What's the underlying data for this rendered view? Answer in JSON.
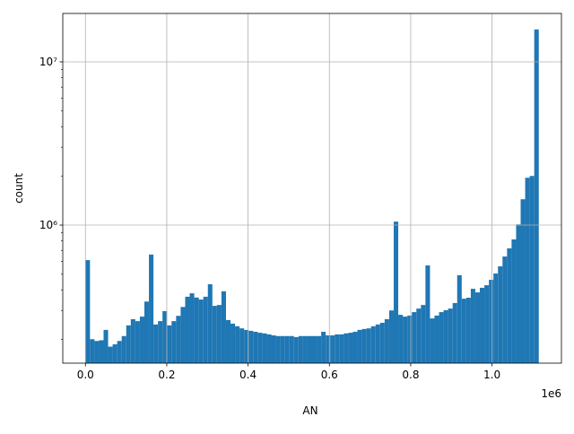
{
  "chart_data": {
    "type": "histogram",
    "xlabel": "AN",
    "ylabel": "count",
    "x_offset_label": "1e6",
    "color": "#1f77b4",
    "log_y": true,
    "grid": true,
    "bins": [
      0,
      11150,
      22300,
      33450,
      44600,
      55750,
      66900,
      78050,
      89200,
      100350,
      111500,
      122650,
      133800,
      144950,
      156100,
      167250,
      178400,
      189550,
      200700,
      211850,
      223000,
      234150,
      245300,
      256450,
      267600,
      278750,
      289900,
      301050,
      312200,
      323350,
      334500,
      345650,
      356800,
      367950,
      379100,
      390250,
      401400,
      412550,
      423700,
      434850,
      446000,
      457150,
      468300,
      479450,
      490600,
      501750,
      512900,
      524050,
      535200,
      546350,
      557500,
      568650,
      579800,
      590950,
      602100,
      613250,
      624400,
      635550,
      646700,
      657850,
      669000,
      680150,
      691300,
      702450,
      713600,
      724750,
      735900,
      747050,
      758200,
      769350,
      780500,
      791650,
      802800,
      813950,
      825100,
      836250,
      847400,
      858550,
      869700,
      880850,
      892000,
      903150,
      914300,
      925450,
      936600,
      947750,
      958900,
      970050,
      981200,
      992350,
      1003500,
      1014650,
      1025800,
      1036950,
      1048100,
      1059250,
      1070400,
      1081550,
      1092700,
      1103850,
      1115000
    ],
    "values": [
      610000,
      200000,
      195000,
      197000,
      228000,
      180000,
      186000,
      195000,
      209000,
      243000,
      265000,
      258000,
      275000,
      340000,
      660000,
      246000,
      258000,
      297000,
      243000,
      258000,
      278000,
      315000,
      364000,
      382000,
      360000,
      350000,
      364000,
      434000,
      320000,
      324000,
      393000,
      262000,
      249000,
      240000,
      233000,
      228000,
      225000,
      222000,
      219000,
      217000,
      214000,
      211000,
      209000,
      209000,
      209000,
      209000,
      206000,
      209000,
      209000,
      209000,
      209000,
      209000,
      222000,
      211000,
      211000,
      214000,
      214000,
      217000,
      219000,
      222000,
      228000,
      231000,
      233000,
      240000,
      246000,
      252000,
      265000,
      300000,
      1050000,
      282000,
      275000,
      279000,
      293000,
      308000,
      324000,
      566000,
      268000,
      279000,
      293000,
      301000,
      308000,
      333000,
      493000,
      354000,
      359000,
      407000,
      387000,
      413000,
      428000,
      462000,
      505000,
      559000,
      642000,
      720000,
      817000,
      1010000,
      1440000,
      1950000,
      2000000,
      15800000
    ],
    "xlim": [
      -55750,
      1170750
    ],
    "ylim": [
      142600,
      19800000
    ],
    "xticks": [
      {
        "value": 0,
        "label": "0.0"
      },
      {
        "value": 200000,
        "label": "0.2"
      },
      {
        "value": 400000,
        "label": "0.4"
      },
      {
        "value": 600000,
        "label": "0.6"
      },
      {
        "value": 800000,
        "label": "0.8"
      },
      {
        "value": 1000000,
        "label": "1.0"
      }
    ],
    "yticks": [
      {
        "value": 1000000,
        "label": "10⁶"
      },
      {
        "value": 10000000,
        "label": "10⁷"
      }
    ],
    "yminorticks": [
      200000,
      300000,
      400000,
      500000,
      600000,
      700000,
      800000,
      900000,
      2000000,
      3000000,
      4000000,
      5000000,
      6000000,
      7000000,
      8000000,
      9000000
    ]
  }
}
